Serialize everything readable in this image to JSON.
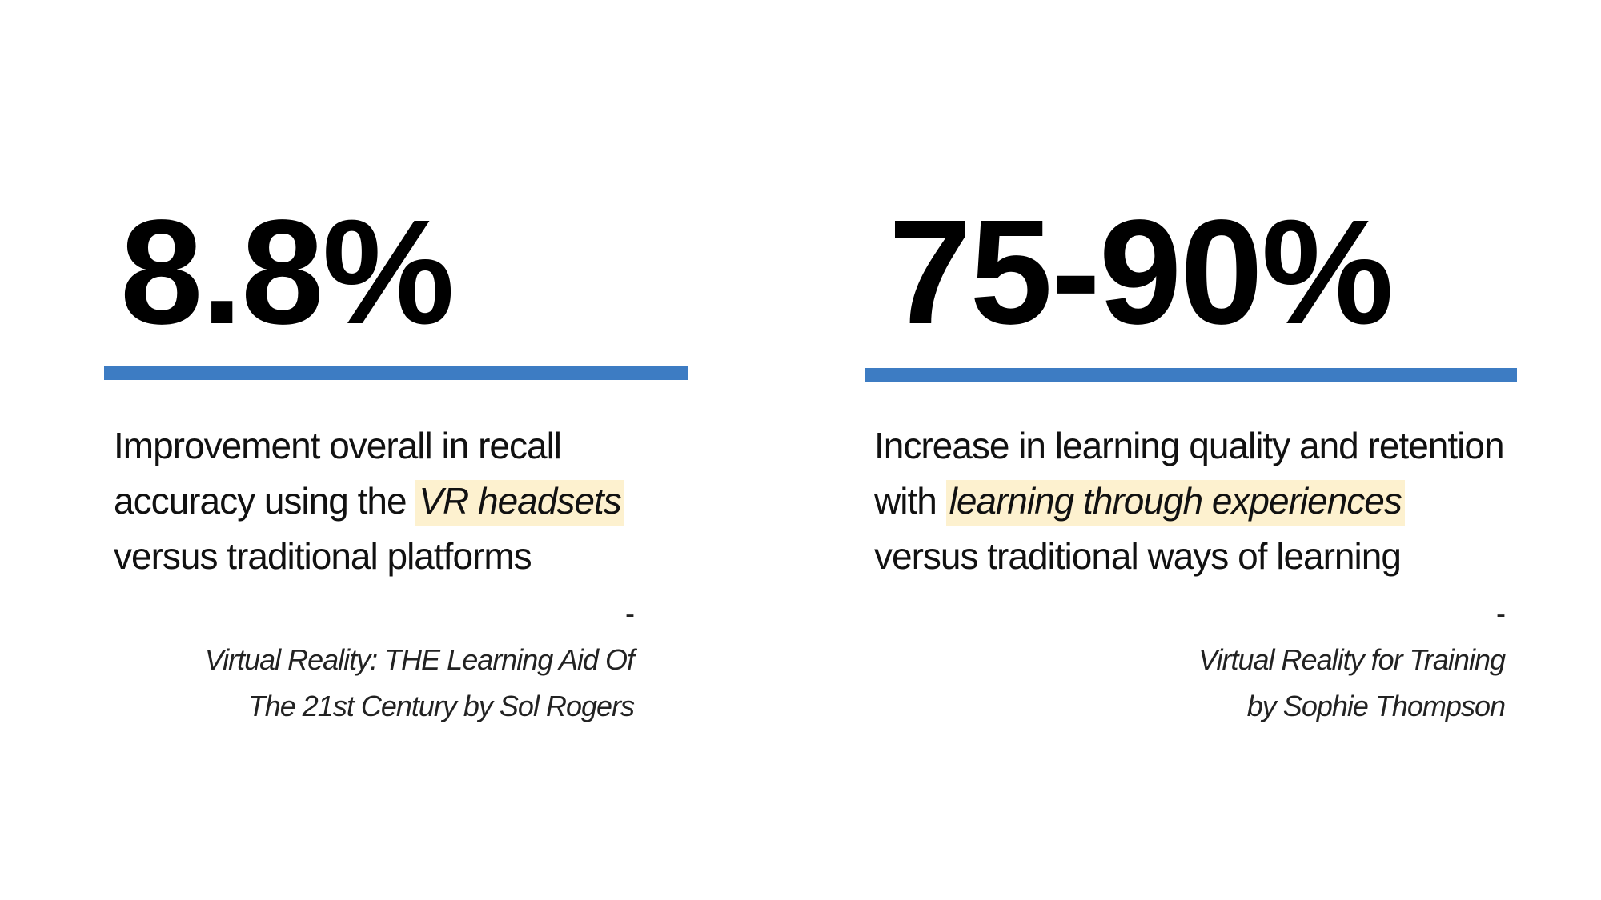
{
  "colors": {
    "accent_bar": "#3d7cc3",
    "highlight": "#fdf1cf",
    "text": "#111111"
  },
  "stats": [
    {
      "value": "8.8%",
      "description_line1": "Improvement overall in recall",
      "description_line2_prefix": "accuracy using the ",
      "description_highlight": "VR headsets",
      "description_line3": "versus traditional platforms",
      "source_dash": "- ",
      "source_line1": "Virtual Reality: THE Learning Aid Of",
      "source_line2": "The 21st Century by Sol Rogers"
    },
    {
      "value": "75-90%",
      "description_line1": "Increase in learning quality and retention",
      "description_line2_prefix": "with ",
      "description_highlight": "learning through experiences",
      "description_line3": "versus traditional ways of learning",
      "source_dash": "- ",
      "source_line1": "Virtual Reality for Training",
      "source_line2": "by Sophie Thompson"
    }
  ]
}
